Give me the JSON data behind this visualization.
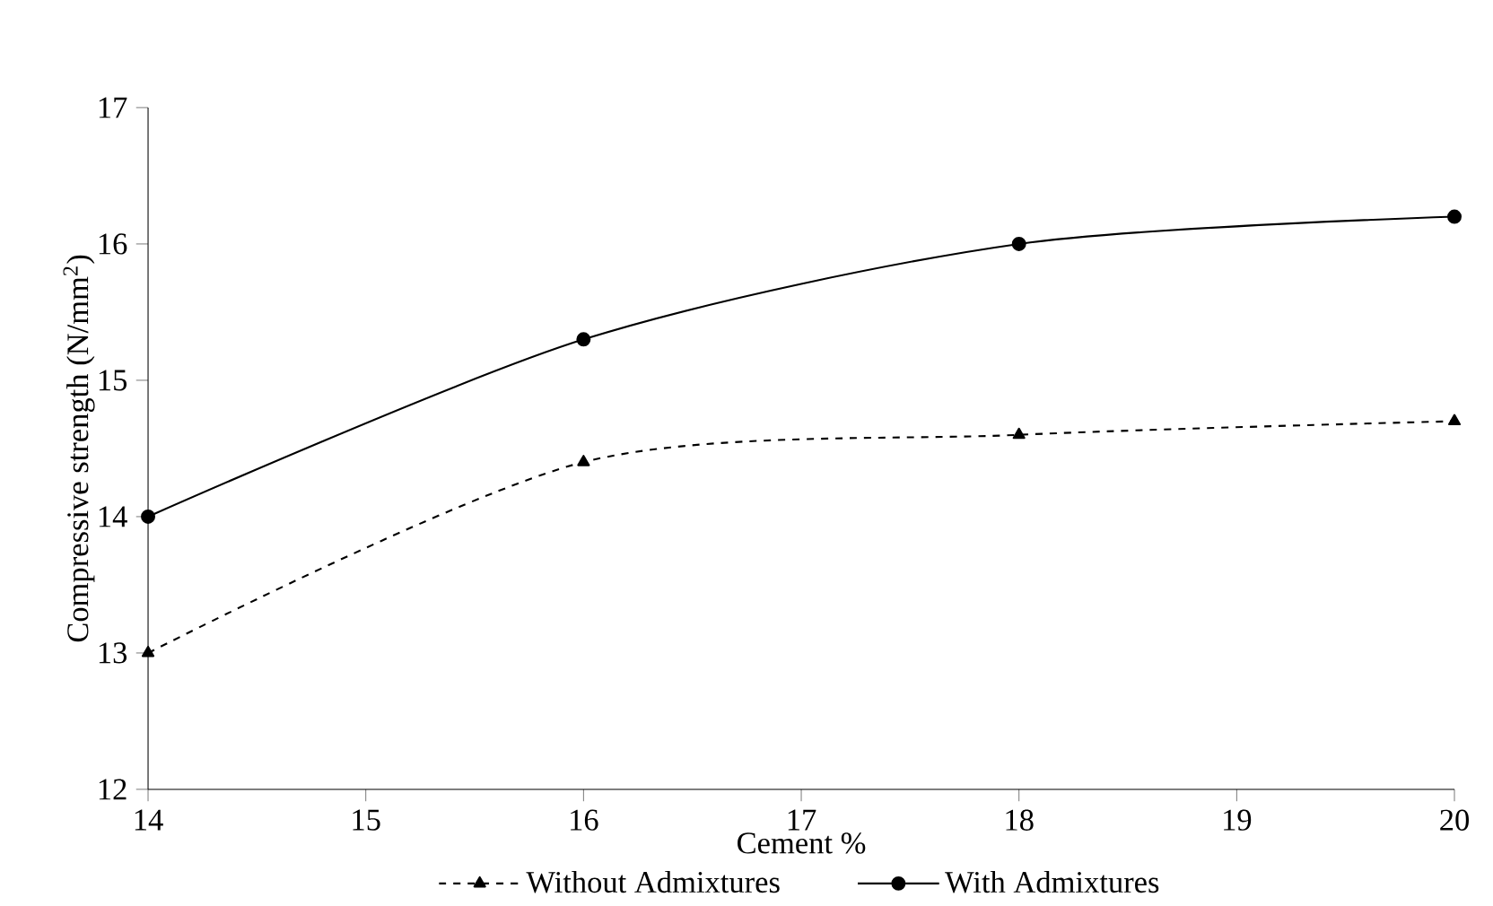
{
  "chart_data": {
    "type": "line",
    "xlabel": "Cement %",
    "ylabel": "Compressive strength (N/mm$^{2}$)",
    "x": [
      14,
      16,
      18,
      20
    ],
    "series": [
      {
        "name": "Without Admixtures",
        "color": "#000000",
        "values": [
          13,
          14.4,
          14.6,
          14.7
        ],
        "marker": "triangle",
        "line_style": "dashed"
      },
      {
        "name": "With Admixtures",
        "color": "#000000",
        "values": [
          14,
          15.3,
          16,
          16.2
        ],
        "marker": "circle",
        "line_style": "solid"
      }
    ],
    "xlim": [
      14,
      20
    ],
    "ylim": [
      12,
      17
    ],
    "xticks": [
      14,
      15,
      16,
      17,
      18,
      19,
      20
    ],
    "yticks": [
      12,
      13,
      14,
      15,
      16,
      17
    ],
    "grid": false,
    "legend": "bottom"
  }
}
